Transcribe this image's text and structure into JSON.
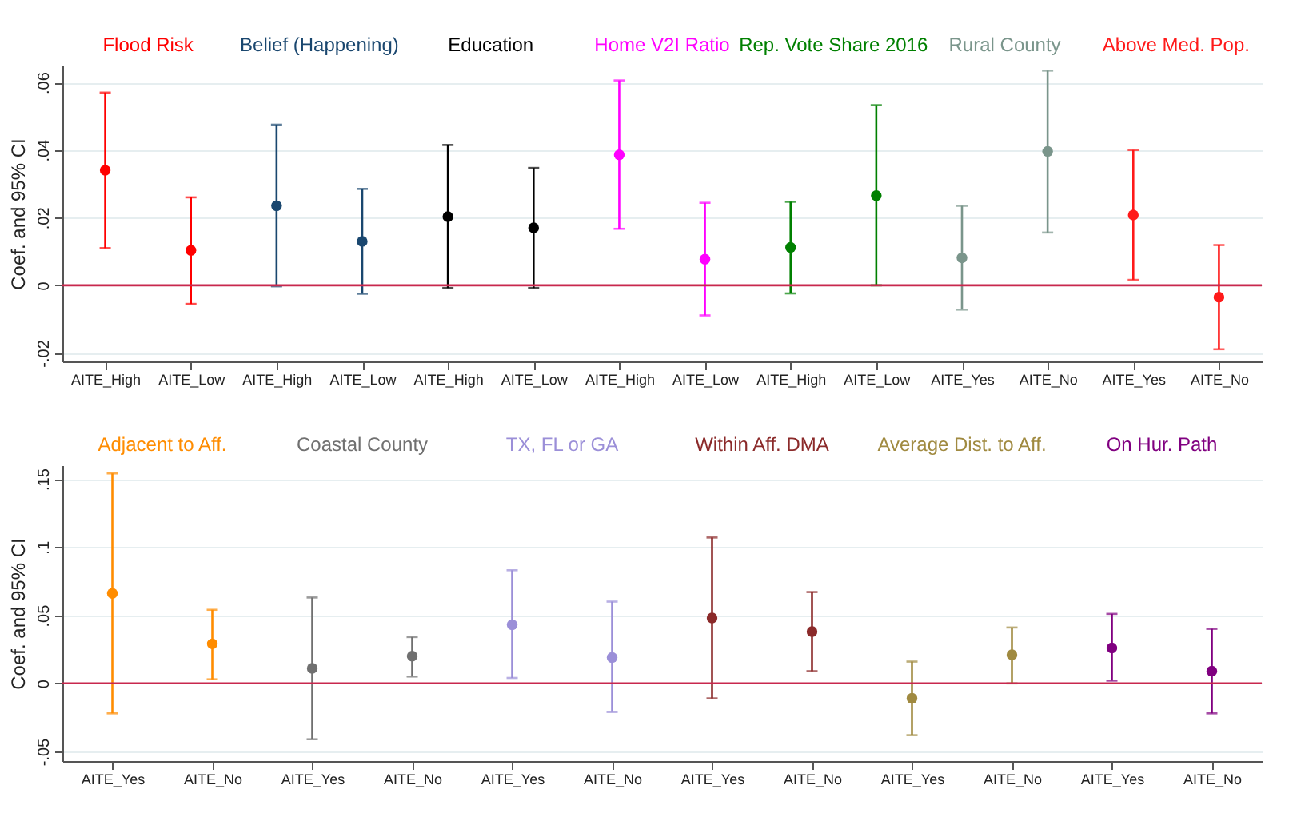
{
  "chart_data": [
    {
      "type": "scatter",
      "ylabel": "Coef. and 95% CI",
      "categories": [
        "AITE_High",
        "AITE_Low",
        "AITE_High",
        "AITE_Low",
        "AITE_High",
        "AITE_Low",
        "AITE_High",
        "AITE_Low",
        "AITE_High",
        "AITE_Low",
        "AITE_Yes",
        "AITE_No",
        "AITE_Yes",
        "AITE_No"
      ],
      "ylim": [
        -0.0225,
        0.065
      ],
      "yticks": [
        {
          "value": -0.02,
          "label": "-.02"
        },
        0,
        {
          "value": 0.02,
          "label": ".02"
        },
        {
          "value": 0.04,
          "label": ".04"
        },
        {
          "value": 0.06,
          "label": ".06"
        }
      ],
      "grid": "y",
      "marker": "circle",
      "ref_lines": [
        {
          "axis": "y",
          "value": 0,
          "color": "#c8284e"
        }
      ],
      "series": [
        {
          "name": "Flood Risk",
          "color": "#ff0000",
          "values": [
            0.034,
            0.0103,
            null,
            null,
            null,
            null,
            null,
            null,
            null,
            null,
            null,
            null,
            null,
            null
          ],
          "errors": [
            [
              0.011,
              0.057
            ],
            [
              -0.0055,
              0.026
            ],
            null,
            null,
            null,
            null,
            null,
            null,
            null,
            null,
            null,
            null,
            null,
            null
          ]
        },
        {
          "name": "Belief (Happening)",
          "color": "#1a476f",
          "values": [
            null,
            null,
            0.0235,
            0.013,
            null,
            null,
            null,
            null,
            null,
            null,
            null,
            null,
            null,
            null
          ],
          "errors": [
            null,
            null,
            [
              -0.0003,
              0.0475
            ],
            [
              -0.0025,
              0.0285
            ],
            null,
            null,
            null,
            null,
            null,
            null,
            null,
            null,
            null,
            null
          ]
        },
        {
          "name": "Education",
          "color": "#000000",
          "values": [
            null,
            null,
            null,
            null,
            0.0203,
            0.017,
            null,
            null,
            null,
            null,
            null,
            null,
            null,
            null
          ],
          "errors": [
            null,
            null,
            null,
            null,
            [
              -0.0008,
              0.0415
            ],
            [
              -0.0008,
              0.0347
            ],
            null,
            null,
            null,
            null,
            null,
            null,
            null,
            null
          ]
        },
        {
          "name": "Home V2I Ratio",
          "color": "#ff00ff",
          "values": [
            null,
            null,
            null,
            null,
            null,
            null,
            0.0386,
            0.0077,
            null,
            null,
            null,
            null,
            null,
            null
          ],
          "errors": [
            null,
            null,
            null,
            null,
            null,
            null,
            [
              0.0167,
              0.0606
            ],
            [
              -0.0089,
              0.0244
            ],
            null,
            null,
            null,
            null,
            null,
            null
          ]
        },
        {
          "name": "Rep. Vote Share 2016",
          "color": "#008000",
          "values": [
            null,
            null,
            null,
            null,
            null,
            null,
            null,
            null,
            0.0112,
            0.0265,
            null,
            null,
            null,
            null
          ],
          "errors": [
            null,
            null,
            null,
            null,
            null,
            null,
            null,
            null,
            [
              -0.0024,
              0.0247
            ],
            [
              0,
              0.0533
            ],
            null,
            null,
            null,
            null
          ]
        },
        {
          "name": "Rural County",
          "color": "#7a958b",
          "values": [
            null,
            null,
            null,
            null,
            null,
            null,
            null,
            null,
            null,
            null,
            0.0081,
            0.0396,
            null,
            null
          ],
          "errors": [
            null,
            null,
            null,
            null,
            null,
            null,
            null,
            null,
            null,
            null,
            [
              -0.0072,
              0.0235
            ],
            [
              0.0156,
              0.0635
            ],
            null,
            null
          ]
        },
        {
          "name": "Above Med. Pop.",
          "color": "#ff1a1a",
          "values": [
            null,
            null,
            null,
            null,
            null,
            null,
            null,
            null,
            null,
            null,
            null,
            null,
            0.0208,
            -0.0035
          ],
          "errors": [
            null,
            null,
            null,
            null,
            null,
            null,
            null,
            null,
            null,
            null,
            null,
            null,
            [
              0.0016,
              0.04
            ],
            [
              -0.0189,
              0.0119
            ]
          ]
        }
      ]
    },
    {
      "type": "scatter",
      "ylabel": "Coef. and 95% CI",
      "categories": [
        "AITE_Yes",
        "AITE_No",
        "AITE_Yes",
        "AITE_No",
        "AITE_Yes",
        "AITE_No",
        "AITE_Yes",
        "AITE_No",
        "AITE_Yes",
        "AITE_No",
        "AITE_Yes",
        "AITE_No"
      ],
      "ylim": [
        -0.057,
        0.16
      ],
      "yticks": [
        {
          "value": -0.05,
          "label": "-.05"
        },
        0,
        {
          "value": 0.05,
          "label": ".05"
        },
        {
          "value": 0.1,
          "label": ".1"
        },
        {
          "value": 0.15,
          "label": ".15"
        }
      ],
      "grid": "y",
      "marker": "circle",
      "ref_lines": [
        {
          "axis": "y",
          "value": 0,
          "color": "#c8284e"
        }
      ],
      "series": [
        {
          "name": "Adjacent to Aff.",
          "color": "#ff8c00",
          "values": [
            0.066,
            0.029,
            null,
            null,
            null,
            null,
            null,
            null,
            null,
            null,
            null,
            null
          ],
          "errors": [
            [
              -0.022,
              0.154
            ],
            [
              0.003,
              0.054
            ],
            null,
            null,
            null,
            null,
            null,
            null,
            null,
            null,
            null,
            null
          ]
        },
        {
          "name": "Coastal County",
          "color": "#707070",
          "values": [
            null,
            null,
            0.011,
            0.02,
            null,
            null,
            null,
            null,
            null,
            null,
            null,
            null
          ],
          "errors": [
            null,
            null,
            [
              -0.041,
              0.063
            ],
            [
              0.005,
              0.034
            ],
            null,
            null,
            null,
            null,
            null,
            null,
            null,
            null
          ]
        },
        {
          "name": "TX, FL or GA",
          "color": "#9b8fd8",
          "values": [
            null,
            null,
            null,
            null,
            0.043,
            0.019,
            null,
            null,
            null,
            null,
            null,
            null
          ],
          "errors": [
            null,
            null,
            null,
            null,
            [
              0.004,
              0.083
            ],
            [
              -0.021,
              0.06
            ],
            null,
            null,
            null,
            null,
            null,
            null
          ]
        },
        {
          "name": "Within Aff. DMA",
          "color": "#8b2a2a",
          "values": [
            null,
            null,
            null,
            null,
            null,
            null,
            0.048,
            0.038,
            null,
            null,
            null,
            null
          ],
          "errors": [
            null,
            null,
            null,
            null,
            null,
            null,
            [
              -0.011,
              0.107
            ],
            [
              0.009,
              0.067
            ],
            null,
            null,
            null,
            null
          ]
        },
        {
          "name": "Average Dist. to Aff.",
          "color": "#a08a40",
          "values": [
            null,
            null,
            null,
            null,
            null,
            null,
            null,
            null,
            -0.011,
            0.021,
            null,
            null
          ],
          "errors": [
            null,
            null,
            null,
            null,
            null,
            null,
            null,
            null,
            [
              -0.038,
              0.016
            ],
            [
              0,
              0.041
            ],
            null,
            null
          ]
        },
        {
          "name": "On Hur. Path",
          "color": "#800080",
          "values": [
            null,
            null,
            null,
            null,
            null,
            null,
            null,
            null,
            null,
            null,
            0.026,
            0.009
          ],
          "errors": [
            null,
            null,
            null,
            null,
            null,
            null,
            null,
            null,
            null,
            null,
            [
              0.002,
              0.051
            ],
            [
              -0.022,
              0.04
            ]
          ]
        }
      ]
    }
  ]
}
